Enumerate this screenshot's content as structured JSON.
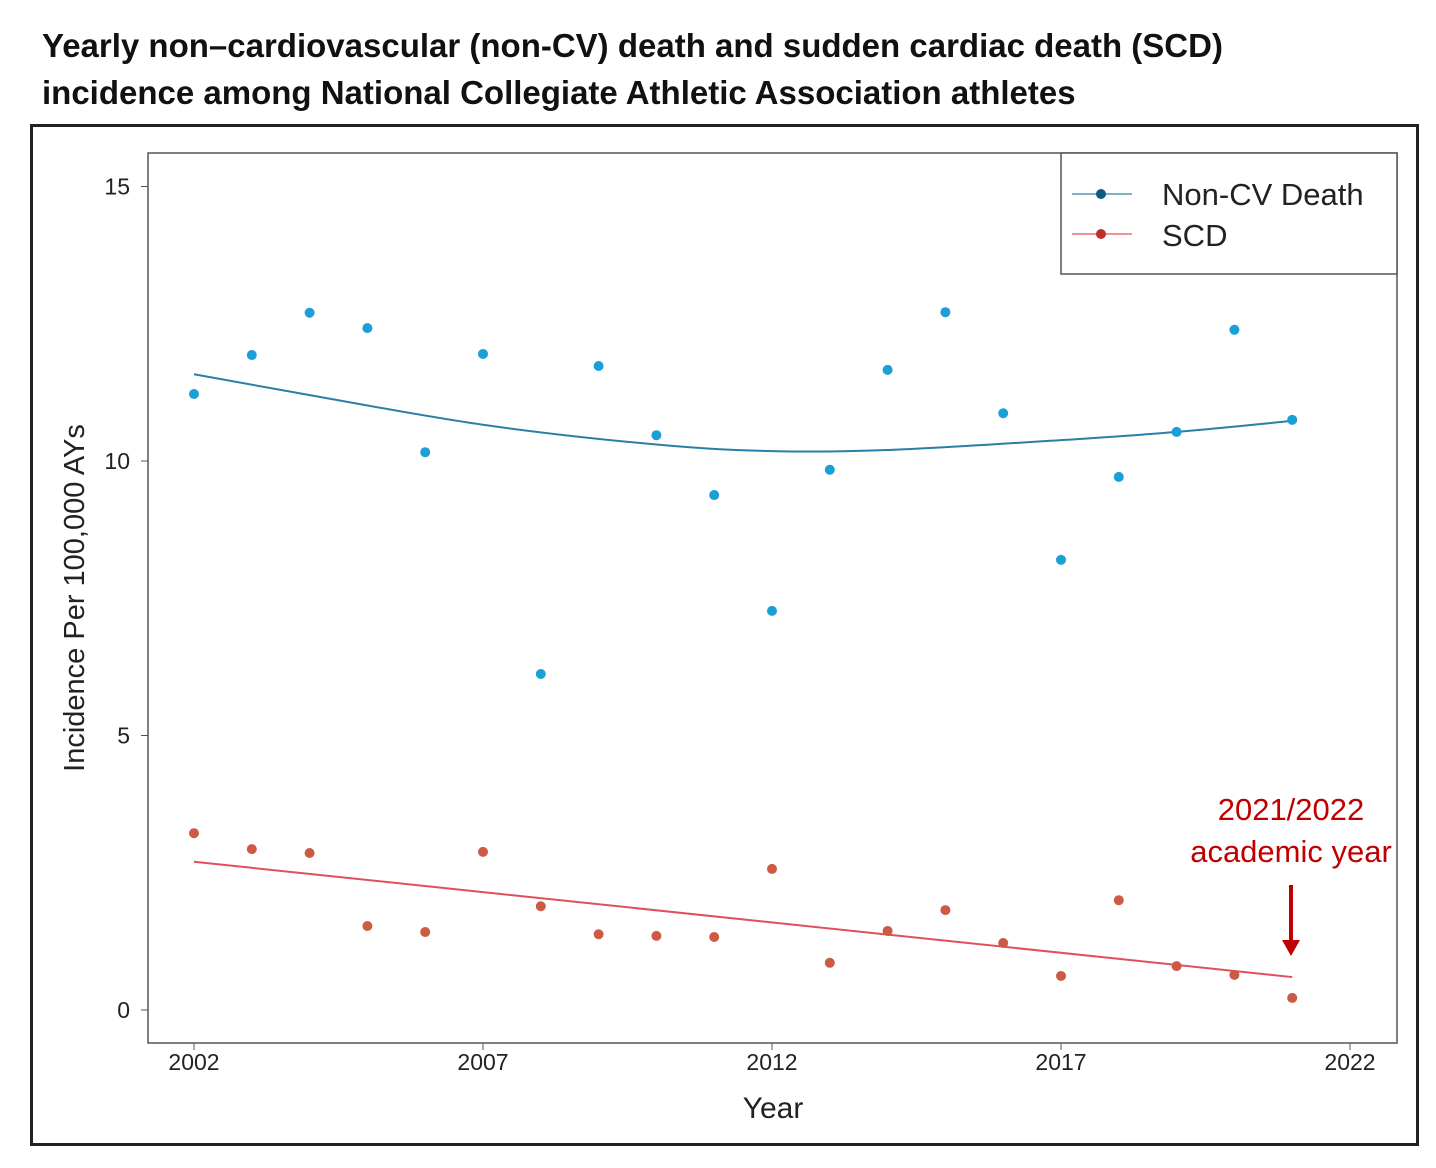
{
  "title_line1": "Yearly non–cardiovascular (non-CV) death and sudden cardiac death (SCD)",
  "title_line2": "incidence among National Collegiate Athletic Association athletes",
  "chart_data": {
    "type": "scatter",
    "title": "Yearly non–cardiovascular (non-CV) death and sudden cardiac death (SCD) incidence among National Collegiate Athletic Association athletes",
    "xlabel": "Year",
    "ylabel": "Incidence Per 100,000 AYs",
    "xlim": [
      2001.2,
      2022.6
    ],
    "ylim": [
      -0.6,
      15.6
    ],
    "xticks": [
      2002,
      2007,
      2012,
      2017,
      2022
    ],
    "yticks": [
      0,
      5,
      10,
      15
    ],
    "legend_position": "top-right",
    "x": [
      2002,
      2003,
      2004,
      2005,
      2006,
      2007,
      2008,
      2009,
      2010,
      2011,
      2012,
      2013,
      2014,
      2015,
      2016,
      2017,
      2018,
      2019,
      2020,
      2021
    ],
    "series": [
      {
        "name": "Non-CV Death",
        "color": "#1a9fd6",
        "trend_color": "#2b7fa6",
        "values": [
          11.22,
          11.93,
          12.7,
          12.42,
          10.16,
          11.95,
          6.12,
          11.73,
          10.47,
          9.38,
          7.27,
          9.84,
          11.66,
          12.71,
          10.87,
          8.2,
          9.71,
          10.53,
          12.39,
          10.75
        ],
        "trend": {
          "type": "smooth",
          "x": [
            2002,
            2004,
            2007,
            2010,
            2012,
            2014,
            2017,
            2019,
            2021
          ],
          "y": [
            11.58,
            11.2,
            10.66,
            10.3,
            10.18,
            10.2,
            10.38,
            10.53,
            10.73
          ]
        }
      },
      {
        "name": "SCD",
        "color": "#cc5a44",
        "trend_color": "#e0505a",
        "values": [
          3.22,
          2.93,
          2.86,
          1.53,
          1.42,
          2.88,
          1.89,
          1.38,
          1.35,
          1.33,
          2.57,
          0.86,
          1.44,
          1.82,
          1.22,
          0.62,
          2.0,
          0.8,
          0.64,
          0.22
        ],
        "trend": {
          "type": "linear",
          "x": [
            2002,
            2021
          ],
          "y": [
            2.7,
            0.6
          ]
        }
      }
    ],
    "annotation": {
      "line1": "2021/2022",
      "line2": "academic year",
      "x": 2021,
      "color": "#c00000"
    }
  }
}
